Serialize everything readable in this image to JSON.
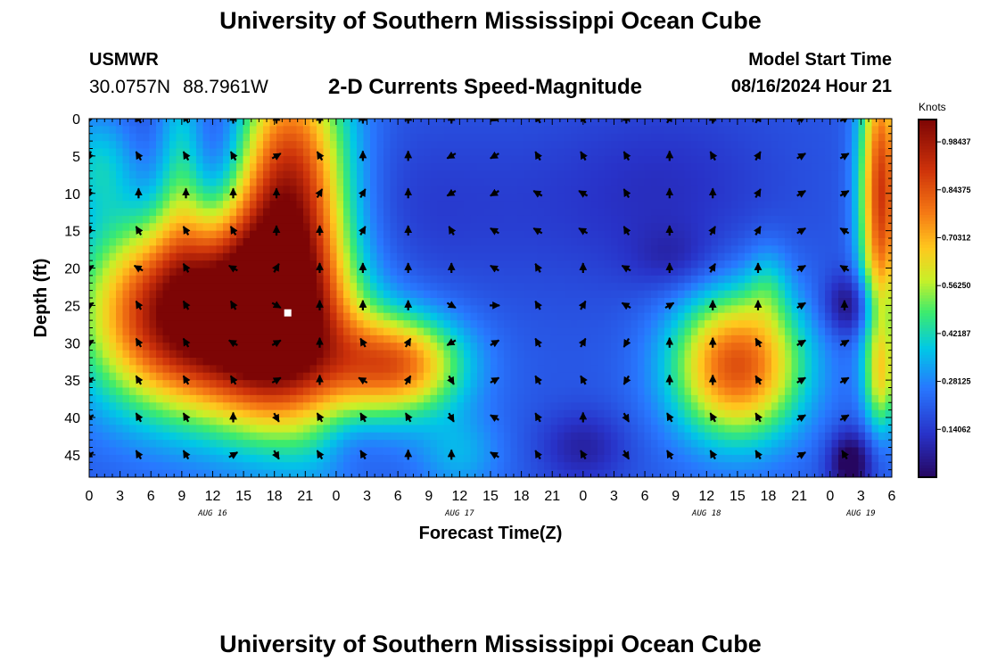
{
  "header": {
    "title": "University of Southern Mississippi Ocean Cube",
    "station": "USMWR",
    "lat": "30.0757N",
    "lon": "88.7961W",
    "subtitle": "2-D Currents Speed-Magnitude",
    "model_start_label": "Model Start Time",
    "model_start_value": "08/16/2024 Hour 21"
  },
  "footer": {
    "title": "University of Southern Mississippi Ocean Cube"
  },
  "chart_data": {
    "type": "heatmap",
    "title": "2-D Currents Speed-Magnitude",
    "xlabel": "Forecast Time(Z)",
    "ylabel": "Depth (ft)",
    "x_range_hours": [
      0,
      78
    ],
    "x_ticks": [
      {
        "h": 0,
        "label": "0"
      },
      {
        "h": 3,
        "label": "3"
      },
      {
        "h": 6,
        "label": "6"
      },
      {
        "h": 9,
        "label": "9"
      },
      {
        "h": 12,
        "label": "12"
      },
      {
        "h": 15,
        "label": "15"
      },
      {
        "h": 18,
        "label": "18"
      },
      {
        "h": 21,
        "label": "21"
      },
      {
        "h": 24,
        "label": "0"
      },
      {
        "h": 27,
        "label": "3"
      },
      {
        "h": 30,
        "label": "6"
      },
      {
        "h": 33,
        "label": "9"
      },
      {
        "h": 36,
        "label": "12"
      },
      {
        "h": 39,
        "label": "15"
      },
      {
        "h": 42,
        "label": "18"
      },
      {
        "h": 45,
        "label": "21"
      },
      {
        "h": 48,
        "label": "0"
      },
      {
        "h": 51,
        "label": "3"
      },
      {
        "h": 54,
        "label": "6"
      },
      {
        "h": 57,
        "label": "9"
      },
      {
        "h": 60,
        "label": "12"
      },
      {
        "h": 63,
        "label": "15"
      },
      {
        "h": 66,
        "label": "18"
      },
      {
        "h": 69,
        "label": "21"
      },
      {
        "h": 72,
        "label": "0"
      },
      {
        "h": 75,
        "label": "3"
      },
      {
        "h": 78,
        "label": "6"
      }
    ],
    "date_labels": [
      {
        "h": 12,
        "label": "AUG 16"
      },
      {
        "h": 36,
        "label": "AUG 17"
      },
      {
        "h": 60,
        "label": "AUG 18"
      },
      {
        "h": 75,
        "label": "AUG 19"
      }
    ],
    "y_range_ft": [
      0,
      48
    ],
    "y_ticks": [
      0,
      5,
      10,
      15,
      20,
      25,
      30,
      35,
      40,
      45
    ],
    "colorbar": {
      "units": "Knots",
      "range": [
        0,
        1.05
      ],
      "ticks": [
        "0.98437",
        "0.84375",
        "0.70312",
        "0.56250",
        "0.42187",
        "0.28125",
        "0.14062"
      ],
      "tick_values": [
        0.98437,
        0.84375,
        0.70312,
        0.5625,
        0.42187,
        0.28125,
        0.14062
      ]
    },
    "speed_field": {
      "base": 0.2,
      "blobs": [
        {
          "h": 9,
          "d": 26,
          "sh": 6.5,
          "sd": 9,
          "a": 0.85
        },
        {
          "h": 9,
          "d": 5,
          "sh": 1.8,
          "sd": 10,
          "a": 0.28
        },
        {
          "h": 19,
          "d": 10,
          "sh": 4.2,
          "sd": 13,
          "a": 0.85
        },
        {
          "h": 19,
          "d": 30,
          "sh": 5.2,
          "sd": 9,
          "a": 0.6
        },
        {
          "h": 30,
          "d": 33,
          "sh": 4.5,
          "sd": 4.8,
          "a": 0.58
        },
        {
          "h": 63,
          "d": 33,
          "sh": 4.5,
          "sd": 7,
          "a": 0.65
        },
        {
          "h": 66,
          "d": 22,
          "sh": 1.5,
          "sd": 4,
          "a": 0.12
        },
        {
          "h": 77,
          "d": 10,
          "sh": 1.5,
          "sd": 14,
          "a": 0.7
        },
        {
          "h": 77,
          "d": 35,
          "sh": 1.2,
          "sd": 5,
          "a": 0.3
        },
        {
          "h": 1,
          "d": 6,
          "sh": 2.5,
          "sd": 5,
          "a": 0.18
        },
        {
          "h": 13,
          "d": 5,
          "sh": 4.5,
          "sd": 9,
          "a": -0.22
        },
        {
          "h": 30,
          "d": 12,
          "sh": 12,
          "sd": 8,
          "a": -0.06
        },
        {
          "h": 25,
          "d": 44,
          "sh": 2.5,
          "sd": 3.5,
          "a": -0.12
        },
        {
          "h": 56,
          "d": 10,
          "sh": 8,
          "sd": 9,
          "a": -0.08
        },
        {
          "h": 57,
          "d": 19,
          "sh": 3,
          "sd": 3,
          "a": -0.08
        },
        {
          "h": 48,
          "d": 44,
          "sh": 3,
          "sd": 3.5,
          "a": -0.12
        },
        {
          "h": 74,
          "d": 25,
          "sh": 1.8,
          "sd": 3,
          "a": -0.2
        },
        {
          "h": 74,
          "d": 46,
          "sh": 1.5,
          "sd": 3,
          "a": -0.25
        },
        {
          "h": 24,
          "d": 45,
          "sh": 3,
          "sd": 4,
          "a": 0.1
        },
        {
          "h": 36,
          "d": 45,
          "sh": 3,
          "sd": 4,
          "a": 0.14
        }
      ]
    },
    "arrow_rows_ft": [
      0,
      5,
      10,
      15,
      20,
      25,
      30,
      35,
      40,
      45
    ],
    "arrow_hours": [
      0,
      4.8,
      9.4,
      14,
      18.2,
      22.4,
      26.6,
      31,
      35.2,
      39.4,
      43.6,
      48,
      52.2,
      56.4,
      60.6,
      65,
      69.2,
      73.4
    ],
    "arrow_directions_deg": [
      [
        200,
        330,
        330,
        0,
        0,
        0,
        0,
        0,
        0,
        240,
        330,
        330,
        0,
        30,
        0,
        30,
        60,
        60
      ],
      [
        200,
        330,
        330,
        330,
        60,
        330,
        0,
        0,
        240,
        240,
        330,
        330,
        330,
        0,
        330,
        30,
        60,
        60
      ],
      [
        200,
        0,
        0,
        0,
        0,
        30,
        30,
        0,
        240,
        240,
        300,
        300,
        330,
        0,
        0,
        30,
        60,
        60
      ],
      [
        200,
        330,
        330,
        330,
        0,
        0,
        30,
        0,
        330,
        300,
        300,
        300,
        330,
        0,
        30,
        30,
        60,
        300
      ],
      [
        60,
        300,
        330,
        300,
        30,
        0,
        0,
        0,
        0,
        300,
        330,
        0,
        300,
        0,
        30,
        0,
        60,
        300
      ],
      [
        60,
        330,
        330,
        330,
        120,
        0,
        0,
        0,
        120,
        90,
        330,
        30,
        300,
        60,
        0,
        0,
        60,
        0
      ],
      [
        60,
        330,
        330,
        300,
        60,
        0,
        330,
        30,
        240,
        60,
        330,
        30,
        210,
        0,
        0,
        330,
        60,
        60
      ],
      [
        240,
        330,
        330,
        330,
        60,
        0,
        300,
        30,
        150,
        60,
        330,
        330,
        210,
        0,
        0,
        330,
        60,
        60
      ],
      [
        240,
        330,
        330,
        0,
        150,
        330,
        330,
        330,
        150,
        300,
        330,
        0,
        150,
        330,
        330,
        330,
        60,
        60
      ],
      [
        240,
        330,
        330,
        60,
        150,
        330,
        330,
        0,
        0,
        300,
        330,
        330,
        150,
        330,
        330,
        330,
        60,
        330
      ]
    ],
    "marker": {
      "h": 19.3,
      "d": 26
    }
  }
}
